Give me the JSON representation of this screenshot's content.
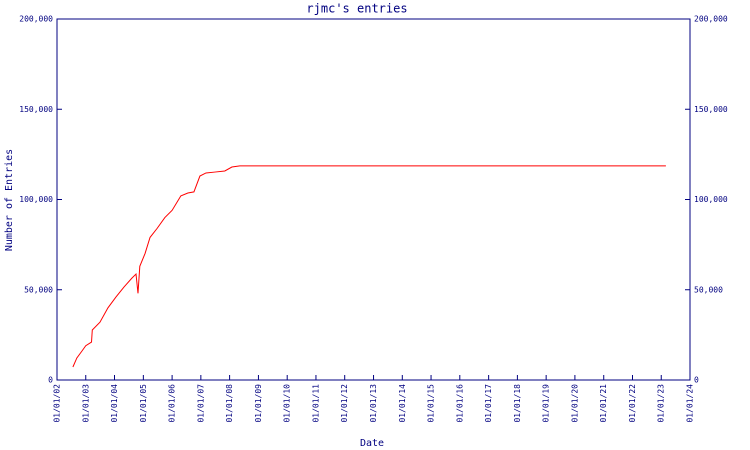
{
  "chart_data": {
    "type": "line",
    "title": "rjmc's entries",
    "x_label": "Date",
    "y_label": "Number of Entries",
    "x": [
      "07/22/02",
      "09/10/02",
      "11/13/02",
      "01/01/03",
      "03/15/03",
      "03/25/03",
      "06/30/03",
      "10/10/03",
      "01/20/04",
      "04/30/04",
      "08/10/04",
      "09/30/04",
      "10/25/04",
      "11/17/04",
      "01/22/05",
      "03/27/05",
      "06/25/05",
      "10/01/05",
      "01/01/06",
      "04/22/06",
      "07/20/06",
      "10/05/06",
      "12/20/06",
      "03/07/07",
      "06/28/07",
      "11/01/07",
      "01/30/08",
      "05/10/08",
      "03/01/23"
    ],
    "series": [
      {
        "name": "rjmc",
        "color": "#ff0000",
        "values": [
          7200,
          12200,
          16000,
          19000,
          21000,
          27700,
          32000,
          40000,
          46000,
          51500,
          56500,
          58700,
          48000,
          63000,
          70000,
          79000,
          84000,
          90000,
          94000,
          102000,
          103600,
          104200,
          113000,
          114700,
          115200,
          115800,
          118000,
          118600,
          118600
        ]
      }
    ],
    "xlim": [
      "01/01/02",
      "01/01/24"
    ],
    "xticks": [
      "01/01/02",
      "01/01/03",
      "01/01/04",
      "01/01/05",
      "01/01/06",
      "01/01/07",
      "01/01/08",
      "01/01/09",
      "01/01/10",
      "01/01/11",
      "01/01/12",
      "01/01/13",
      "01/01/14",
      "01/01/15",
      "01/01/16",
      "01/01/17",
      "01/01/18",
      "01/01/19",
      "01/01/20",
      "01/01/21",
      "01/01/22",
      "01/01/23",
      "01/01/24"
    ],
    "ylim": [
      0,
      200000
    ],
    "yticks": [
      0,
      {
        "value": 50000,
        "label": "50,000"
      },
      {
        "value": 100000,
        "label": "100,000"
      },
      {
        "value": 150000,
        "label": "150,000"
      },
      {
        "value": 200000,
        "label": "200,000"
      }
    ],
    "y2lim": [
      0,
      200000
    ],
    "y2ticks": [
      0,
      {
        "value": 50000,
        "label": "50,000"
      },
      {
        "value": 100000,
        "label": "100,000"
      },
      {
        "value": 150000,
        "label": "150,000"
      },
      {
        "value": 200000,
        "label": "200,000"
      }
    ],
    "axis_color": "#000080"
  }
}
